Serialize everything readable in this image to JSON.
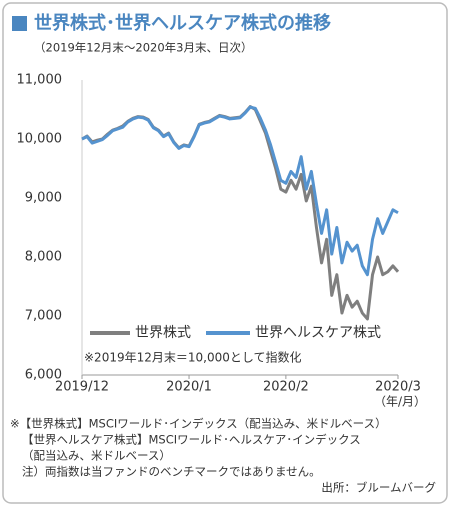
{
  "chart_data": {
    "type": "line",
    "title": "世界株式･世界ヘルスケア株式の推移",
    "subtitle": "（2019年12月末～2020年3月末、日次）",
    "x": [
      0,
      1,
      2,
      3,
      4,
      5,
      6,
      7,
      8,
      9,
      10,
      11,
      12,
      13,
      14,
      15,
      16,
      17,
      18,
      19,
      20,
      21,
      22,
      23,
      24,
      25,
      26,
      27,
      28,
      29,
      30,
      31,
      32,
      33,
      34,
      35,
      36,
      37,
      38,
      39,
      40,
      41,
      42,
      43,
      44,
      45,
      46,
      47,
      48,
      49,
      50,
      51,
      52,
      53,
      54,
      55,
      56,
      57,
      58,
      59,
      60,
      61,
      62
    ],
    "xlim": [
      0,
      62
    ],
    "xticks": [
      {
        "value": 0,
        "label": "2019/12"
      },
      {
        "value": 21,
        "label": "2020/1"
      },
      {
        "value": 40,
        "label": "2020/2"
      },
      {
        "value": 62,
        "label": "2020/3"
      }
    ],
    "x_unit": "（年/月）",
    "ylim": [
      6000,
      11000
    ],
    "yticks": [
      {
        "value": 6000,
        "label": "6,000"
      },
      {
        "value": 7000,
        "label": "7,000"
      },
      {
        "value": 8000,
        "label": "8,000"
      },
      {
        "value": 9000,
        "label": "9,000"
      },
      {
        "value": 10000,
        "label": "10,000"
      },
      {
        "value": 11000,
        "label": "11,000"
      }
    ],
    "grid": false,
    "series": [
      {
        "name": "世界株式",
        "color": "#7f7f7f",
        "values": [
          10000,
          10050,
          9950,
          9980,
          10000,
          10080,
          10150,
          10180,
          10220,
          10300,
          10350,
          10380,
          10370,
          10330,
          10200,
          10150,
          10050,
          10100,
          9950,
          9850,
          9900,
          9880,
          10050,
          10250,
          10280,
          10300,
          10350,
          10400,
          10380,
          10350,
          10360,
          10370,
          10450,
          10550,
          10500,
          10300,
          10100,
          9800,
          9500,
          9150,
          9100,
          9300,
          9150,
          9400,
          8950,
          9200,
          8500,
          7900,
          8300,
          7350,
          7700,
          7050,
          7350,
          7150,
          7250,
          7050,
          6950,
          7700,
          8000,
          7700,
          7750,
          7850,
          7750
        ]
      },
      {
        "name": "世界ヘルスケア株式",
        "color": "#5593cf",
        "values": [
          10000,
          10040,
          9930,
          9960,
          9990,
          10060,
          10140,
          10170,
          10200,
          10290,
          10340,
          10370,
          10360,
          10320,
          10190,
          10140,
          10040,
          10090,
          9940,
          9840,
          9890,
          9870,
          10040,
          10240,
          10270,
          10290,
          10340,
          10390,
          10370,
          10340,
          10350,
          10360,
          10440,
          10540,
          10520,
          10350,
          10150,
          9900,
          9600,
          9300,
          9250,
          9450,
          9350,
          9700,
          9150,
          9450,
          8900,
          8400,
          8800,
          8050,
          8500,
          7900,
          8250,
          8100,
          8200,
          7850,
          7700,
          8300,
          8650,
          8400,
          8600,
          8800,
          8750
        ]
      }
    ],
    "note": "※2019年12月末＝10,000として指数化",
    "footnotes": [
      "※【世界株式】MSCIワールド･インデックス（配当込み、米ドルベース）",
      "【世界ヘルスケア株式】MSCIワールド･ヘルスケア･インデックス",
      "（配当込み、米ドルベース）",
      "注）両指数は当ファンドのベンチマークではありません。"
    ],
    "source": "出所：ブルームバーグ"
  }
}
